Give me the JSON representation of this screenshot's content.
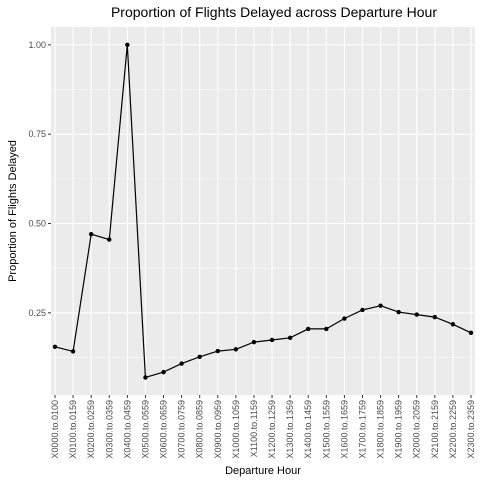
{
  "chart_data": {
    "type": "line",
    "title": "Proportion of Flights Delayed across Departure Hour",
    "xlabel": "Departure Hour",
    "ylabel": "Proportion of Flights Delayed",
    "categories": [
      "X0000.to.0100",
      "X0100.to.0159",
      "X0200.to.0259",
      "X0300.to.0359",
      "X0400.to.0459",
      "X0500.to.0559",
      "X0600.to.0659",
      "X0700.to.0759",
      "X0800.to.0859",
      "X0900.to.0959",
      "X1000.to.1059",
      "X1100.to.1159",
      "X1200.to.1259",
      "X1300.to.1359",
      "X1400.to.1459",
      "X1500.to.1559",
      "X1600.to.1659",
      "X1700.to.1759",
      "X1800.to.1859",
      "X1900.to.1959",
      "X2000.to.2059",
      "X2100.to.2159",
      "X2200.to.2259",
      "X2300.to.2359"
    ],
    "values": [
      0.155,
      0.142,
      0.47,
      0.455,
      1.0,
      0.069,
      0.084,
      0.108,
      0.127,
      0.143,
      0.148,
      0.168,
      0.174,
      0.18,
      0.205,
      0.205,
      0.234,
      0.258,
      0.27,
      0.252,
      0.245,
      0.238,
      0.218,
      0.194
    ],
    "yticks": [
      0.25,
      0.5,
      0.75,
      1.0
    ],
    "ytick_labels": [
      "0.25",
      "0.50",
      "0.75",
      "1.00"
    ],
    "ylim": [
      0.02,
      1.05
    ],
    "grid": true,
    "legend": "none",
    "colors": {
      "panel": "#ebebeb",
      "line": "#000000",
      "grid": "#ffffff"
    }
  }
}
